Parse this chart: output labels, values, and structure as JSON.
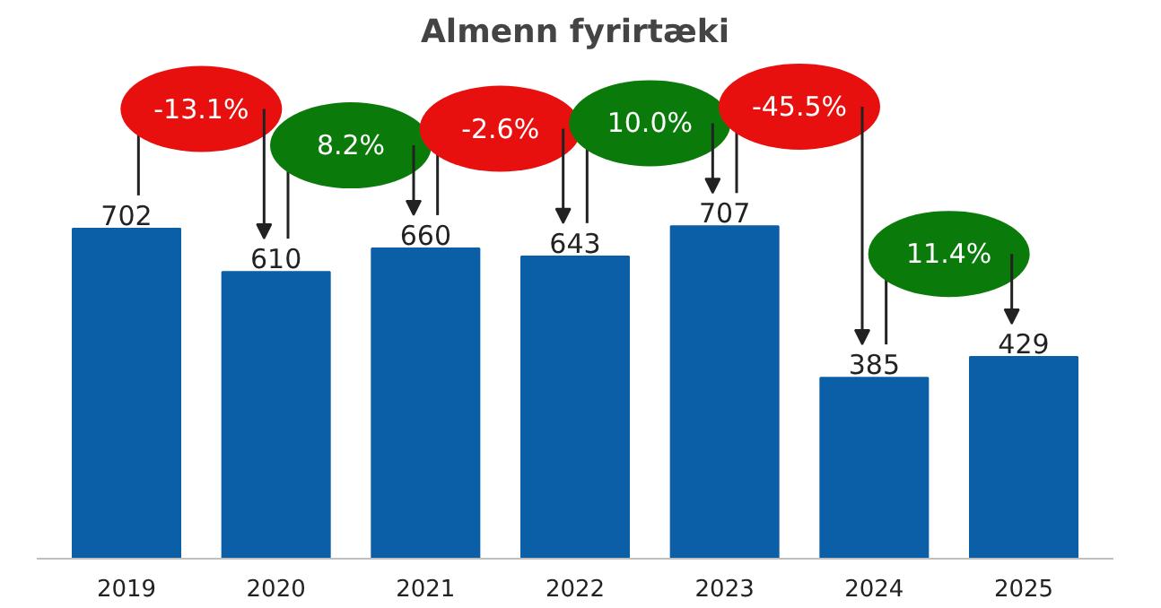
{
  "chart_data": {
    "type": "bar",
    "title": "Almenn fyrirtæki",
    "categories": [
      "2019",
      "2020",
      "2021",
      "2022",
      "2023",
      "2024",
      "2025"
    ],
    "values": [
      702,
      610,
      660,
      643,
      707,
      385,
      429
    ],
    "color": "#0a5fa6",
    "data_labels": true,
    "grid": false,
    "annotations": [
      "-13.1%",
      "8.2%",
      "-2.6%",
      "10.0%",
      "-45.5%",
      "11.4%"
    ]
  }
}
